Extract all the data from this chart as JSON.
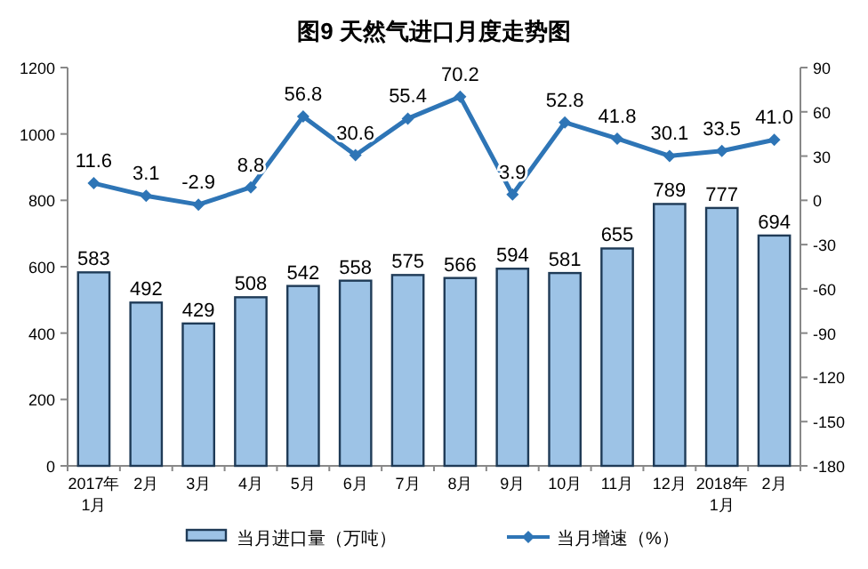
{
  "chart_data": {
    "type": "bar",
    "title": "图9  天然气进口月度走势图",
    "categories": [
      "2017年\n1月",
      "2月",
      "3月",
      "4月",
      "5月",
      "6月",
      "7月",
      "8月",
      "9月",
      "10月",
      "11月",
      "12月",
      "2018年\n1月",
      "2月"
    ],
    "ylim": [
      0,
      1200
    ],
    "yticks": [
      0,
      200,
      400,
      600,
      800,
      1000,
      1200
    ],
    "y2lim": [
      -180,
      90
    ],
    "y2ticks": [
      -180,
      -150,
      -120,
      -90,
      -60,
      -30,
      0,
      30,
      60,
      90
    ],
    "legend": "bottom",
    "grid": false,
    "series": [
      {
        "name": "当月进口量（万吨）",
        "color": "#9dc3e6",
        "values": [
          583,
          492,
          429,
          508,
          542,
          558,
          575,
          566,
          594,
          581,
          655,
          789,
          777,
          694
        ],
        "value_labels": [
          "583",
          "492",
          "429",
          "508",
          "542",
          "558",
          "575",
          "566",
          "594",
          "581",
          "655",
          "789",
          "777",
          "694"
        ]
      },
      {
        "name": "当月增速（%）",
        "type": "line",
        "axis": "y2",
        "color": "#2e75b6",
        "marker": "diamond",
        "values": [
          11.6,
          3.1,
          -2.9,
          8.8,
          56.8,
          30.6,
          55.4,
          70.2,
          3.9,
          52.8,
          41.8,
          30.1,
          33.5,
          41.0
        ],
        "value_labels": [
          "11.6",
          "3.1",
          "-2.9",
          "8.8",
          "56.8",
          "30.6",
          "55.4",
          "70.2",
          "3.9",
          "52.8",
          "41.8",
          "30.1",
          "33.5",
          "41.0"
        ]
      }
    ]
  }
}
